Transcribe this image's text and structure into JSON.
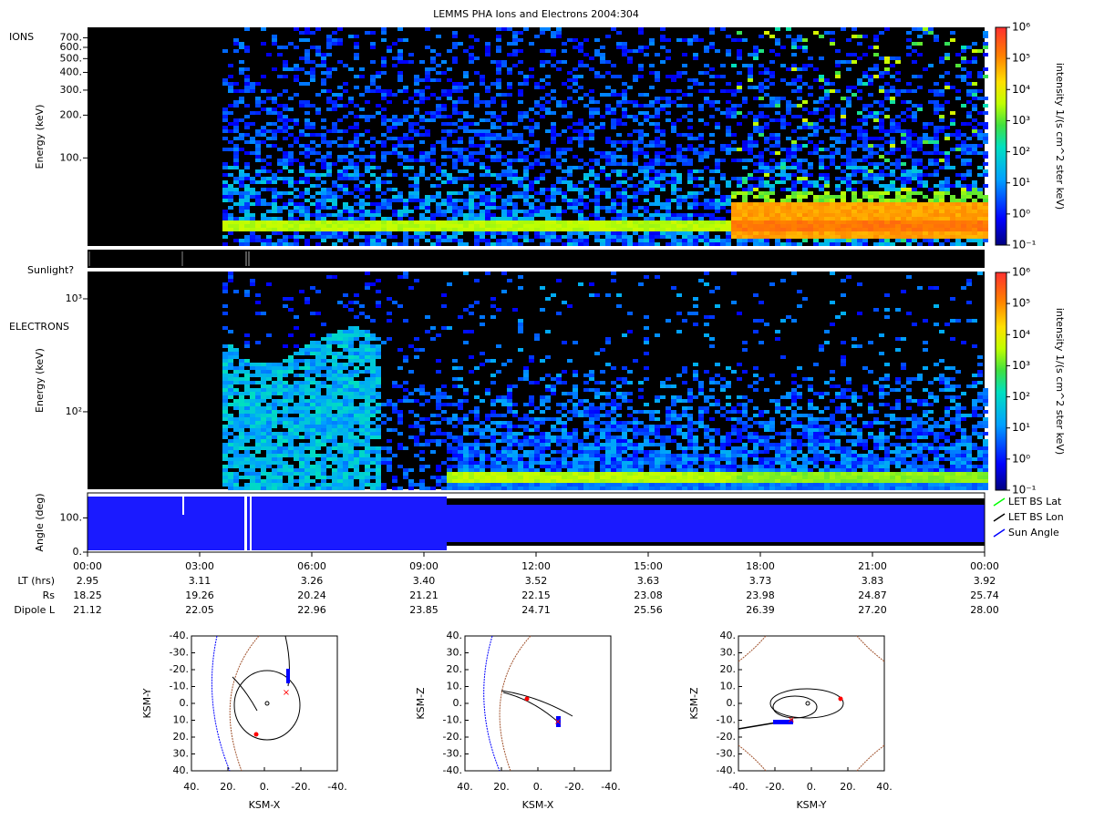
{
  "title": "LEMMS PHA Ions and Electrons  2004:304",
  "x_axis": {
    "xlim": [
      0,
      24
    ],
    "xticks": [
      {
        "value": 0,
        "label": "00:00"
      },
      {
        "value": 3,
        "label": "03:00"
      },
      {
        "value": 6,
        "label": "06:00"
      },
      {
        "value": 9,
        "label": "09:00"
      },
      {
        "value": 12,
        "label": "12:00"
      },
      {
        "value": 15,
        "label": "15:00"
      },
      {
        "value": 18,
        "label": "18:00"
      },
      {
        "value": 21,
        "label": "21:00"
      },
      {
        "value": 24,
        "label": "00:00"
      }
    ]
  },
  "colorbar": {
    "label": "intensity 1/(s cm^2 ster keV)",
    "log": true,
    "lim": [
      0.1,
      1000000
    ],
    "ticks": [
      {
        "value": 0.1,
        "label": "10⁻¹"
      },
      {
        "value": 1,
        "label": "10⁰"
      },
      {
        "value": 10,
        "label": "10¹"
      },
      {
        "value": 100,
        "label": "10²"
      },
      {
        "value": 1000,
        "label": "10³"
      },
      {
        "value": 10000,
        "label": "10⁴"
      },
      {
        "value": 100000,
        "label": "10⁵"
      },
      {
        "value": 1000000,
        "label": "10⁶"
      }
    ]
  },
  "ions": {
    "label": "IONS",
    "ylabel": "Energy (keV)",
    "log": true,
    "ylim": [
      24,
      830
    ],
    "yticks": [
      {
        "value": 100,
        "label": "100."
      },
      {
        "value": 200,
        "label": "200."
      },
      {
        "value": 300,
        "label": "300."
      },
      {
        "value": 400,
        "label": "400."
      },
      {
        "value": 500,
        "label": "500."
      },
      {
        "value": 600,
        "label": "600."
      },
      {
        "value": 700,
        "label": "700."
      }
    ]
  },
  "sunlight": {
    "label": "Sunlight?"
  },
  "electrons": {
    "label": "ELECTRONS",
    "ylabel": "Energy (keV)",
    "log": true,
    "ylim": [
      20.6,
      1745
    ],
    "yticks": [
      {
        "value": 100,
        "label": "10²"
      },
      {
        "value": 1000,
        "label": "10³"
      }
    ]
  },
  "angle": {
    "ylabel": "Angle (deg)",
    "ylim": [
      0,
      173
    ],
    "yticks": [
      {
        "value": 0,
        "label": "0."
      },
      {
        "value": 100,
        "label": "100."
      }
    ],
    "legend": [
      {
        "name": "LET BS Lat",
        "color": "#00ff00"
      },
      {
        "name": "LET BS Lon",
        "color": "#000000"
      },
      {
        "name": "Sun Angle",
        "color": "#0000ff"
      }
    ]
  },
  "ephemeris": {
    "rows": [
      {
        "label": "LT (hrs)",
        "values": [
          "2.95",
          "3.11",
          "3.26",
          "3.40",
          "3.52",
          "3.63",
          "3.73",
          "3.83",
          "3.92"
        ]
      },
      {
        "label": "Rs",
        "values": [
          "18.25",
          "19.26",
          "20.24",
          "21.21",
          "22.15",
          "23.08",
          "23.98",
          "24.87",
          "25.74"
        ]
      },
      {
        "label": "Dipole L",
        "values": [
          "21.12",
          "22.05",
          "22.96",
          "23.85",
          "24.71",
          "25.56",
          "26.39",
          "27.20",
          "28.00"
        ]
      }
    ]
  },
  "orbits": [
    {
      "xlabel": "KSM-X",
      "ylabel": "KSM-Y",
      "xlim": [
        40,
        -40
      ],
      "ylim": [
        40,
        -40
      ],
      "xticks": [
        {
          "value": 40,
          "label": "40."
        },
        {
          "value": 20,
          "label": "20."
        },
        {
          "value": 0,
          "label": "0."
        },
        {
          "value": -20,
          "label": "-20."
        },
        {
          "value": -40,
          "label": "-40."
        }
      ],
      "yticks": [
        {
          "value": -40,
          "label": "-40."
        },
        {
          "value": -30,
          "label": "-30."
        },
        {
          "value": -20,
          "label": "-20."
        },
        {
          "value": -10,
          "label": "-10."
        },
        {
          "value": 0,
          "label": "0."
        },
        {
          "value": 10,
          "label": "10."
        },
        {
          "value": 20,
          "label": "20."
        },
        {
          "value": 30,
          "label": "30."
        },
        {
          "value": 40,
          "label": "40."
        }
      ]
    },
    {
      "xlabel": "KSM-X",
      "ylabel": "KSM-Z",
      "xlim": [
        40,
        -40
      ],
      "ylim": [
        -40,
        40
      ],
      "xticks": [
        {
          "value": 40,
          "label": "40."
        },
        {
          "value": 20,
          "label": "20."
        },
        {
          "value": 0,
          "label": "0."
        },
        {
          "value": -20,
          "label": "-20."
        },
        {
          "value": -40,
          "label": "-40."
        }
      ],
      "yticks": [
        {
          "value": 40,
          "label": "40."
        },
        {
          "value": 30,
          "label": "30."
        },
        {
          "value": 20,
          "label": "20."
        },
        {
          "value": 10,
          "label": "10."
        },
        {
          "value": 0,
          "label": "0."
        },
        {
          "value": -10,
          "label": "-10."
        },
        {
          "value": -20,
          "label": "-20."
        },
        {
          "value": -30,
          "label": "-30."
        },
        {
          "value": -40,
          "label": "-40."
        }
      ]
    },
    {
      "xlabel": "KSM-Y",
      "ylabel": "KSM-Z",
      "xlim": [
        -40,
        40
      ],
      "ylim": [
        -40,
        40
      ],
      "xticks": [
        {
          "value": -40,
          "label": "-40."
        },
        {
          "value": -20,
          "label": "-20."
        },
        {
          "value": 0,
          "label": "0."
        },
        {
          "value": 20,
          "label": "20."
        },
        {
          "value": 40,
          "label": "40."
        }
      ],
      "yticks": [
        {
          "value": 40,
          "label": "40."
        },
        {
          "value": 30,
          "label": "30."
        },
        {
          "value": 20,
          "label": "20."
        },
        {
          "value": 10,
          "label": "10."
        },
        {
          "value": 0,
          "label": "0."
        },
        {
          "value": -10,
          "label": "-10."
        },
        {
          "value": -20,
          "label": "-20."
        },
        {
          "value": -30,
          "label": "-30."
        },
        {
          "value": -40,
          "label": "-40."
        }
      ]
    }
  ]
}
